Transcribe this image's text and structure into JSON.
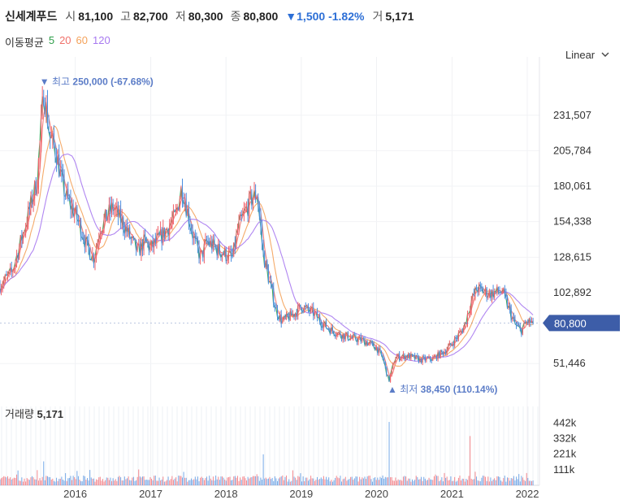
{
  "header": {
    "stock_name": "신세계푸드",
    "open_label": "시",
    "open": "81,100",
    "high_label": "고",
    "high": "82,700",
    "low_label": "저",
    "low": "80,300",
    "close_label": "종",
    "close": "80,800",
    "change_arrow": "▼",
    "change": "1,500",
    "change_pct": "-1.82%",
    "volume_label": "거",
    "volume": "5,171"
  },
  "moving_average": {
    "label": "이동평균",
    "periods": [
      {
        "value": "5",
        "color": "#2e9e4a"
      },
      {
        "value": "20",
        "color": "#f0716a"
      },
      {
        "value": "60",
        "color": "#f4a25a"
      },
      {
        "value": "120",
        "color": "#a779f0"
      }
    ]
  },
  "scale": {
    "label": "Linear",
    "icon": "chevron-down-icon"
  },
  "colors": {
    "up": "#f0616a",
    "down": "#4a8ee0",
    "price_tag": "#3d5da8",
    "annot": "#5b7cc7"
  },
  "chart_data": {
    "type": "candlestick",
    "y_ticks": [
      "231,507",
      "205,784",
      "180,061",
      "154,338",
      "128,615",
      "102,892",
      "51,446"
    ],
    "y_tick_values": [
      231507,
      205784,
      180061,
      154338,
      128615,
      102892,
      51446
    ],
    "ylim": [
      38000,
      265000
    ],
    "x_ticks": [
      "2016",
      "2017",
      "2018",
      "2019",
      "2020",
      "2021",
      "2022"
    ],
    "x_tick_dates": [
      "2016-01-01",
      "2017-01-01",
      "2018-01-01",
      "2019-01-01",
      "2020-01-01",
      "2021-01-01",
      "2022-01-01"
    ],
    "xlim": [
      "2015-01-01",
      "2022-03-01"
    ],
    "price_path": [
      [
        "2015-01-01",
        108000
      ],
      [
        "2015-03-01",
        118000
      ],
      [
        "2015-05-01",
        150000
      ],
      [
        "2015-07-01",
        185000
      ],
      [
        "2015-08-01",
        250000
      ],
      [
        "2015-09-01",
        215000
      ],
      [
        "2015-10-01",
        205000
      ],
      [
        "2015-11-01",
        180000
      ],
      [
        "2015-12-01",
        168000
      ],
      [
        "2016-01-01",
        160000
      ],
      [
        "2016-02-01",
        148000
      ],
      [
        "2016-03-01",
        135000
      ],
      [
        "2016-04-01",
        128000
      ],
      [
        "2016-05-01",
        150000
      ],
      [
        "2016-07-01",
        165000
      ],
      [
        "2016-09-01",
        150000
      ],
      [
        "2016-10-01",
        140000
      ],
      [
        "2016-11-01",
        132000
      ],
      [
        "2016-12-01",
        140000
      ],
      [
        "2017-01-01",
        135000
      ],
      [
        "2017-03-01",
        145000
      ],
      [
        "2017-05-01",
        158000
      ],
      [
        "2017-06-01",
        180000
      ],
      [
        "2017-07-01",
        160000
      ],
      [
        "2017-08-01",
        140000
      ],
      [
        "2017-09-01",
        128000
      ],
      [
        "2017-10-01",
        140000
      ],
      [
        "2017-12-01",
        133000
      ],
      [
        "2018-02-01",
        128000
      ],
      [
        "2018-03-01",
        150000
      ],
      [
        "2018-05-01",
        170000
      ],
      [
        "2018-06-01",
        175000
      ],
      [
        "2018-07-01",
        130000
      ],
      [
        "2018-08-01",
        110000
      ],
      [
        "2018-09-01",
        90000
      ],
      [
        "2018-10-01",
        82000
      ],
      [
        "2018-12-01",
        88000
      ],
      [
        "2019-01-01",
        93000
      ],
      [
        "2019-03-01",
        88000
      ],
      [
        "2019-05-01",
        78000
      ],
      [
        "2019-07-01",
        73000
      ],
      [
        "2019-09-01",
        70000
      ],
      [
        "2019-11-01",
        68000
      ],
      [
        "2020-01-01",
        63000
      ],
      [
        "2020-02-01",
        55000
      ],
      [
        "2020-03-01",
        38450
      ],
      [
        "2020-04-01",
        56000
      ],
      [
        "2020-06-01",
        57000
      ],
      [
        "2020-08-01",
        54000
      ],
      [
        "2020-10-01",
        55000
      ],
      [
        "2020-12-01",
        61000
      ],
      [
        "2021-01-01",
        66000
      ],
      [
        "2021-02-01",
        72000
      ],
      [
        "2021-03-01",
        78000
      ],
      [
        "2021-04-01",
        95000
      ],
      [
        "2021-05-01",
        106000
      ],
      [
        "2021-07-01",
        102000
      ],
      [
        "2021-09-01",
        104000
      ],
      [
        "2021-10-01",
        92000
      ],
      [
        "2021-11-01",
        80000
      ],
      [
        "2021-12-01",
        75000
      ],
      [
        "2022-01-01",
        82000
      ],
      [
        "2022-02-01",
        80800
      ]
    ],
    "ma_periods": [
      5,
      20,
      60,
      120
    ],
    "annotations": {
      "high": {
        "prefix": "▼",
        "label": "최고",
        "value": "250,000",
        "pct": "(-67.68%)",
        "date": "2015-08-01",
        "price": 250000
      },
      "low": {
        "prefix": "▲",
        "label": "최저",
        "value": "38,450",
        "pct": "(110.14%)",
        "date": "2020-03-01",
        "price": 38450
      }
    },
    "last_price_label": "80,800",
    "last_price": 80800,
    "volume": {
      "label": "거래량",
      "value": "5,171",
      "ticks": [
        "442k",
        "332k",
        "221k",
        "111k"
      ],
      "tick_values": [
        442000,
        332000,
        221000,
        111000
      ],
      "ylim": [
        0,
        560000
      ],
      "spikes": [
        [
          "2020-03-01",
          450000
        ],
        [
          "2021-04-01",
          350000
        ],
        [
          "2018-07-01",
          220000
        ],
        [
          "2015-08-01",
          170000
        ]
      ]
    }
  }
}
